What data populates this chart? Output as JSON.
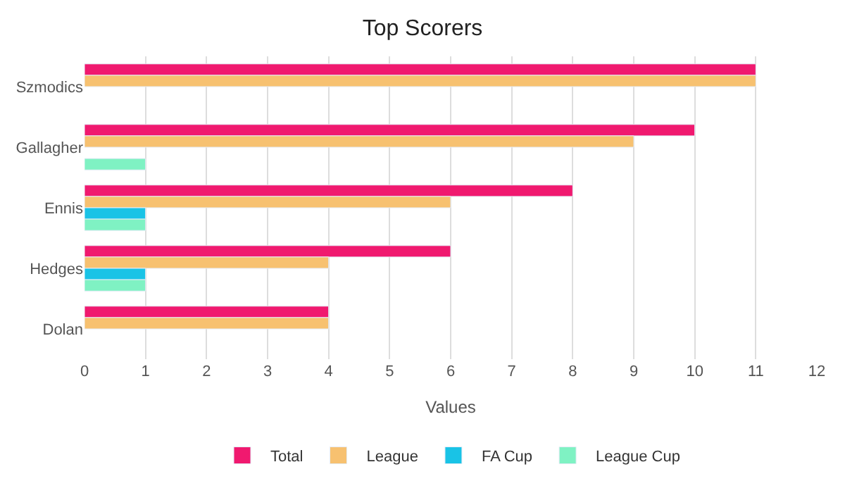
{
  "chart_data": {
    "type": "bar",
    "orientation": "horizontal",
    "title": "Top Scorers",
    "xlabel": "Values",
    "categories": [
      "Szmodics",
      "Gallagher",
      "Ennis",
      "Hedges",
      "Dolan"
    ],
    "series": [
      {
        "name": "Total",
        "color": "#f0196f",
        "values": [
          11,
          10,
          8,
          6,
          4
        ]
      },
      {
        "name": "League",
        "color": "#f7c170",
        "values": [
          11,
          9,
          6,
          4,
          4
        ]
      },
      {
        "name": "FA Cup",
        "color": "#19c3e6",
        "values": [
          null,
          null,
          1,
          1,
          null
        ]
      },
      {
        "name": "League Cup",
        "color": "#7ff2c3",
        "values": [
          null,
          1,
          1,
          1,
          null
        ]
      }
    ],
    "xlim": [
      0,
      12
    ],
    "xticks": [
      0,
      1,
      2,
      3,
      4,
      5,
      6,
      7,
      8,
      9,
      10,
      11,
      12
    ],
    "grid": "x",
    "legend": "bottom"
  }
}
